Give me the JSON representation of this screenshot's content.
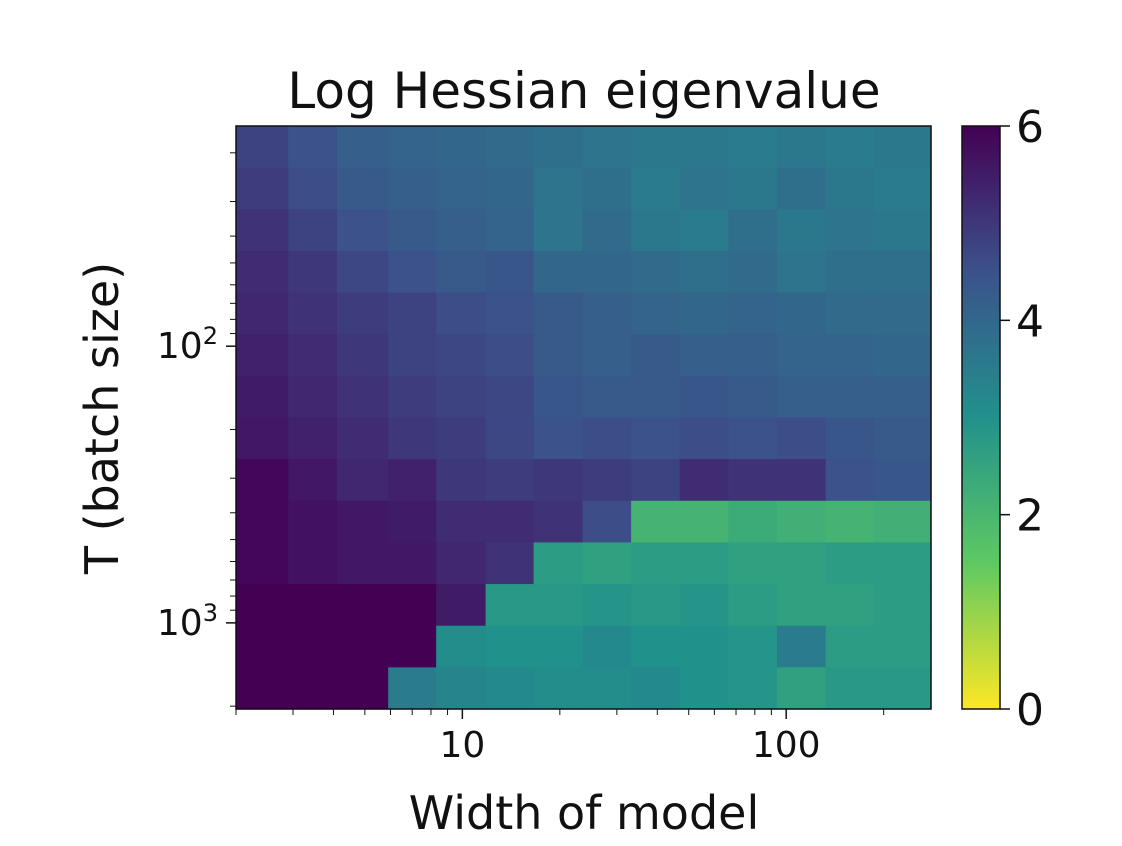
{
  "chart_data": {
    "type": "heatmap",
    "title": "Log Hessian eigenvalue",
    "xlabel": "Width of model",
    "ylabel": "T (batch size)",
    "x_scale": "log",
    "y_scale": "log",
    "y_inverted": true,
    "x_ticks": [
      {
        "value": 10,
        "label": "10"
      },
      {
        "value": 100,
        "label": "100"
      }
    ],
    "y_ticks": [
      {
        "value": 100,
        "label_base": "10",
        "label_exp": "2"
      },
      {
        "value": 1000,
        "label_base": "10",
        "label_exp": "3"
      }
    ],
    "xlim": [
      2,
      280
    ],
    "ylim": [
      2048,
      16
    ],
    "colorbar": {
      "colormap": "viridis (reversed)",
      "range": [
        0,
        6
      ],
      "ticks": [
        "0",
        "2",
        "4",
        "6"
      ],
      "stops": [
        "#fde725",
        "#5ec962",
        "#21918c",
        "#3b528b",
        "#440154"
      ]
    },
    "x_bins": [
      2,
      2.9,
      4.1,
      5.9,
      8.3,
      11.8,
      16.6,
      23.5,
      33.2,
      46.9,
      66.3,
      93.7,
      132.4,
      187,
      280
    ],
    "y_bins": [
      16,
      22.6,
      32,
      45.3,
      64,
      90.5,
      128,
      181,
      256,
      362,
      512,
      724,
      1024,
      1448,
      2048
    ],
    "values": [
      [
        4.8,
        4.5,
        4.2,
        4.1,
        4.0,
        3.9,
        3.8,
        3.7,
        3.6,
        3.6,
        3.5,
        3.6,
        3.5,
        3.6
      ],
      [
        4.9,
        4.6,
        4.3,
        4.2,
        4.1,
        4.0,
        3.7,
        3.8,
        3.5,
        3.7,
        3.6,
        3.8,
        3.6,
        3.5
      ],
      [
        5.1,
        4.8,
        4.5,
        4.3,
        4.2,
        4.1,
        3.7,
        3.9,
        3.6,
        3.5,
        3.8,
        3.6,
        3.7,
        3.6
      ],
      [
        5.2,
        5.0,
        4.7,
        4.5,
        4.3,
        4.4,
        4.0,
        4.0,
        3.9,
        3.8,
        3.9,
        3.7,
        3.8,
        3.8
      ],
      [
        5.3,
        5.1,
        4.9,
        4.8,
        4.6,
        4.5,
        4.3,
        4.2,
        4.1,
        4.0,
        4.1,
        4.0,
        3.9,
        3.9
      ],
      [
        5.4,
        5.2,
        5.0,
        4.8,
        4.7,
        4.6,
        4.3,
        4.2,
        4.3,
        4.2,
        4.2,
        4.1,
        4.1,
        4.0
      ],
      [
        5.5,
        5.3,
        5.1,
        4.9,
        4.8,
        4.7,
        4.4,
        4.3,
        4.3,
        4.4,
        4.3,
        4.2,
        4.2,
        4.2
      ],
      [
        5.6,
        5.4,
        5.2,
        5.0,
        4.9,
        4.7,
        4.5,
        4.6,
        4.5,
        4.6,
        4.5,
        4.6,
        4.4,
        4.3
      ],
      [
        5.9,
        5.6,
        5.3,
        5.4,
        5.0,
        4.9,
        5.0,
        4.9,
        4.8,
        5.2,
        5.1,
        5.1,
        4.5,
        4.4
      ],
      [
        5.9,
        5.7,
        5.6,
        5.5,
        5.2,
        5.2,
        5.1,
        4.6,
        2.1,
        2.1,
        2.3,
        2.2,
        2.1,
        2.2
      ],
      [
        5.9,
        5.7,
        5.6,
        5.6,
        5.3,
        5.1,
        2.7,
        2.6,
        2.7,
        2.7,
        2.6,
        2.6,
        2.7,
        2.7
      ],
      [
        6.0,
        6.0,
        6.0,
        6.0,
        5.5,
        2.8,
        2.8,
        2.9,
        2.8,
        2.9,
        2.7,
        2.6,
        2.6,
        2.7
      ],
      [
        6.0,
        6.0,
        6.0,
        6.0,
        3.1,
        3.0,
        3.0,
        3.2,
        3.0,
        3.0,
        2.9,
        3.5,
        2.7,
        2.7
      ],
      [
        6.0,
        6.0,
        6.0,
        3.5,
        3.3,
        3.2,
        3.1,
        3.1,
        3.2,
        3.0,
        2.9,
        2.6,
        2.8,
        2.8
      ]
    ]
  }
}
